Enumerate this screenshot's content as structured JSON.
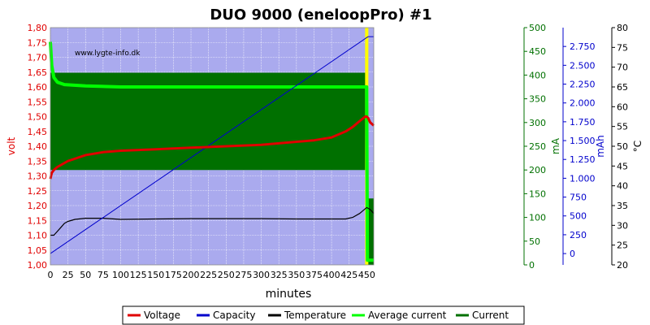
{
  "chart_data": {
    "type": "line",
    "title": "DUO 9000 (eneloopPro) #1",
    "watermark": "www.lygte-info.dk",
    "xlabel": "minutes",
    "xlim": [
      0,
      460
    ],
    "x_ticks": [
      0,
      25,
      50,
      75,
      100,
      125,
      150,
      175,
      200,
      225,
      250,
      275,
      300,
      325,
      350,
      375,
      400,
      425,
      450
    ],
    "axes": {
      "volt": {
        "label": "volt",
        "color": "#e00000",
        "range": [
          1.0,
          1.8
        ],
        "ticks": [
          "1,00",
          "1,05",
          "1,10",
          "1,15",
          "1,20",
          "1,25",
          "1,30",
          "1,35",
          "1,40",
          "1,45",
          "1,50",
          "1,55",
          "1,60",
          "1,65",
          "1,70",
          "1,75",
          "1,80"
        ]
      },
      "mA": {
        "label": "mA",
        "color": "#007000",
        "range": [
          0,
          500
        ],
        "ticks": [
          "0",
          "50",
          "100",
          "150",
          "200",
          "250",
          "300",
          "350",
          "400",
          "450",
          "500"
        ]
      },
      "mAh": {
        "label": "mAh",
        "color": "#0000cc",
        "range": [
          -150,
          3000
        ],
        "ticks": [
          "0",
          "250",
          "500",
          "750",
          "1.000",
          "1.250",
          "1.500",
          "1.750",
          "2.000",
          "2.250",
          "2.500",
          "2.750"
        ]
      },
      "temp": {
        "label": "°C",
        "color": "#000000",
        "range": [
          20,
          80
        ],
        "ticks": [
          "20",
          "25",
          "30",
          "35",
          "40",
          "45",
          "50",
          "55",
          "60",
          "65",
          "70",
          "75",
          "80"
        ]
      }
    },
    "background_color": "#aaaaee",
    "grid": true,
    "legend_position": "bottom",
    "series": [
      {
        "name": "Voltage",
        "axis": "volt",
        "color": "#e00000",
        "x": [
          0,
          2,
          5,
          10,
          25,
          50,
          75,
          100,
          150,
          200,
          250,
          300,
          350,
          375,
          400,
          420,
          430,
          440,
          448,
          450,
          452,
          455,
          460
        ],
        "y": [
          1.29,
          1.31,
          1.32,
          1.33,
          1.35,
          1.37,
          1.38,
          1.385,
          1.39,
          1.395,
          1.4,
          1.405,
          1.415,
          1.42,
          1.43,
          1.45,
          1.465,
          1.485,
          1.5,
          1.5,
          1.495,
          1.48,
          1.47
        ]
      },
      {
        "name": "Capacity",
        "axis": "mAh",
        "color": "#0000cc",
        "x": [
          0,
          452,
          460
        ],
        "y": [
          0,
          2880,
          2880
        ]
      },
      {
        "name": "Temperature",
        "axis": "temp",
        "color": "#000000",
        "x": [
          0,
          5,
          10,
          15,
          20,
          25,
          35,
          50,
          75,
          100,
          150,
          200,
          300,
          350,
          400,
          420,
          430,
          440,
          450,
          455,
          460
        ],
        "y": [
          27.5,
          27.5,
          28.5,
          29.5,
          30.5,
          31.0,
          31.5,
          31.8,
          31.8,
          31.5,
          31.6,
          31.7,
          31.7,
          31.6,
          31.6,
          31.6,
          32.0,
          33.0,
          34.5,
          34.0,
          33.0
        ]
      },
      {
        "name": "Average current",
        "axis": "mA",
        "color": "#00ff00",
        "x": [
          0,
          2,
          5,
          10,
          20,
          50,
          100,
          200,
          300,
          400,
          450,
          451,
          452,
          460
        ],
        "y": [
          470,
          420,
          395,
          385,
          380,
          377,
          375,
          375,
          375,
          375,
          375,
          10,
          10,
          10
        ]
      },
      {
        "name": "Current",
        "axis": "mA",
        "color": "#007000",
        "x": [
          0,
          450,
          452,
          460
        ],
        "band_low": [
          200,
          200,
          0,
          0
        ],
        "band_high": [
          405,
          405,
          140,
          140
        ]
      }
    ],
    "highlight_x": 450,
    "highlight_color": "#ffff00"
  }
}
